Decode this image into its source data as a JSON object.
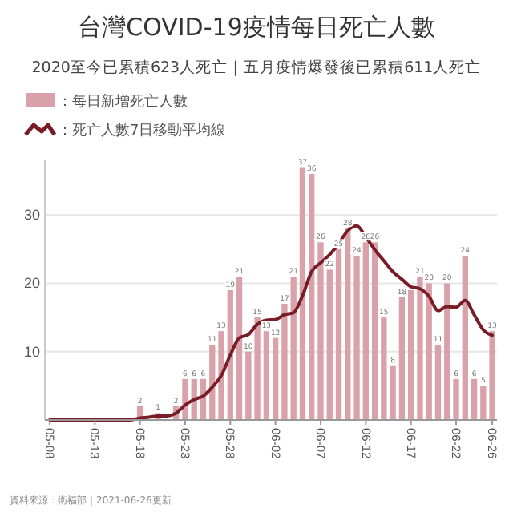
{
  "chart_data": {
    "type": "bar",
    "title": "台灣COVID-19疫情每日死亡人數",
    "subtitle": "2020至今已累積623人死亡｜五月疫情爆發後已累積611人死亡",
    "categories": [
      "05-08",
      null,
      null,
      null,
      null,
      "05-13",
      null,
      null,
      null,
      null,
      "05-18",
      null,
      null,
      null,
      null,
      "05-23",
      null,
      null,
      null,
      null,
      "05-28",
      null,
      null,
      null,
      null,
      "06-02",
      null,
      null,
      null,
      null,
      "06-07",
      null,
      null,
      null,
      null,
      "06-12",
      null,
      null,
      null,
      null,
      "06-17",
      null,
      null,
      null,
      null,
      "06-22",
      null,
      null,
      null,
      "06-26"
    ],
    "series": [
      {
        "name": "：每日新增死亡人數",
        "color": "#d9a1a9",
        "values": [
          0,
          0,
          0,
          0,
          0,
          0,
          0,
          0,
          0,
          0,
          2,
          0,
          1,
          0,
          2,
          6,
          6,
          6,
          11,
          13,
          19,
          21,
          10,
          15,
          13,
          12,
          17,
          21,
          37,
          36,
          26,
          22,
          25,
          28,
          24,
          26,
          26,
          15,
          8,
          18,
          19,
          21,
          20,
          11,
          20,
          6,
          24,
          6,
          5,
          13
        ],
        "value_labels": [
          null,
          null,
          null,
          null,
          null,
          null,
          null,
          null,
          null,
          null,
          "2",
          null,
          "1",
          null,
          "2",
          "6",
          "6",
          "6",
          "11",
          "13",
          "19",
          "21",
          "10",
          "15",
          "13",
          "12",
          "17",
          "21",
          "37",
          "36",
          "26",
          "22",
          "25",
          "28",
          "24",
          "26",
          "26",
          "15",
          "8",
          "18",
          null,
          "21",
          "20",
          "11",
          "20",
          "6",
          "24",
          "6",
          "5",
          "13"
        ]
      },
      {
        "name": "：死亡人數7日移動平均線",
        "type": "line",
        "color": "#7a1c26",
        "values": [
          0,
          0,
          0,
          0,
          0,
          0,
          0,
          0,
          0,
          0,
          0.3,
          0.4,
          0.6,
          0.6,
          1,
          2.2,
          3,
          3.5,
          4.8,
          6.5,
          9.5,
          12,
          12.5,
          14,
          14.6,
          14.7,
          15.4,
          15.7,
          18.2,
          21.7,
          23,
          24.2,
          25.8,
          27.7,
          28.4,
          26.8,
          24.9,
          23.3,
          21.7,
          20.6,
          19.5,
          19.2,
          18.1,
          16,
          16.6,
          16.5,
          17.5,
          15.4,
          13.2,
          12.4
        ]
      }
    ],
    "ylim": [
      0,
      38
    ],
    "yticks": [
      {
        "value": 0,
        "label": null
      },
      10,
      20,
      30
    ],
    "grid": "y",
    "legend": "top left",
    "line_style": "solid",
    "marker": "none",
    "annotations": [
      "資料來源：衛福部｜2021-06-26更新"
    ]
  }
}
